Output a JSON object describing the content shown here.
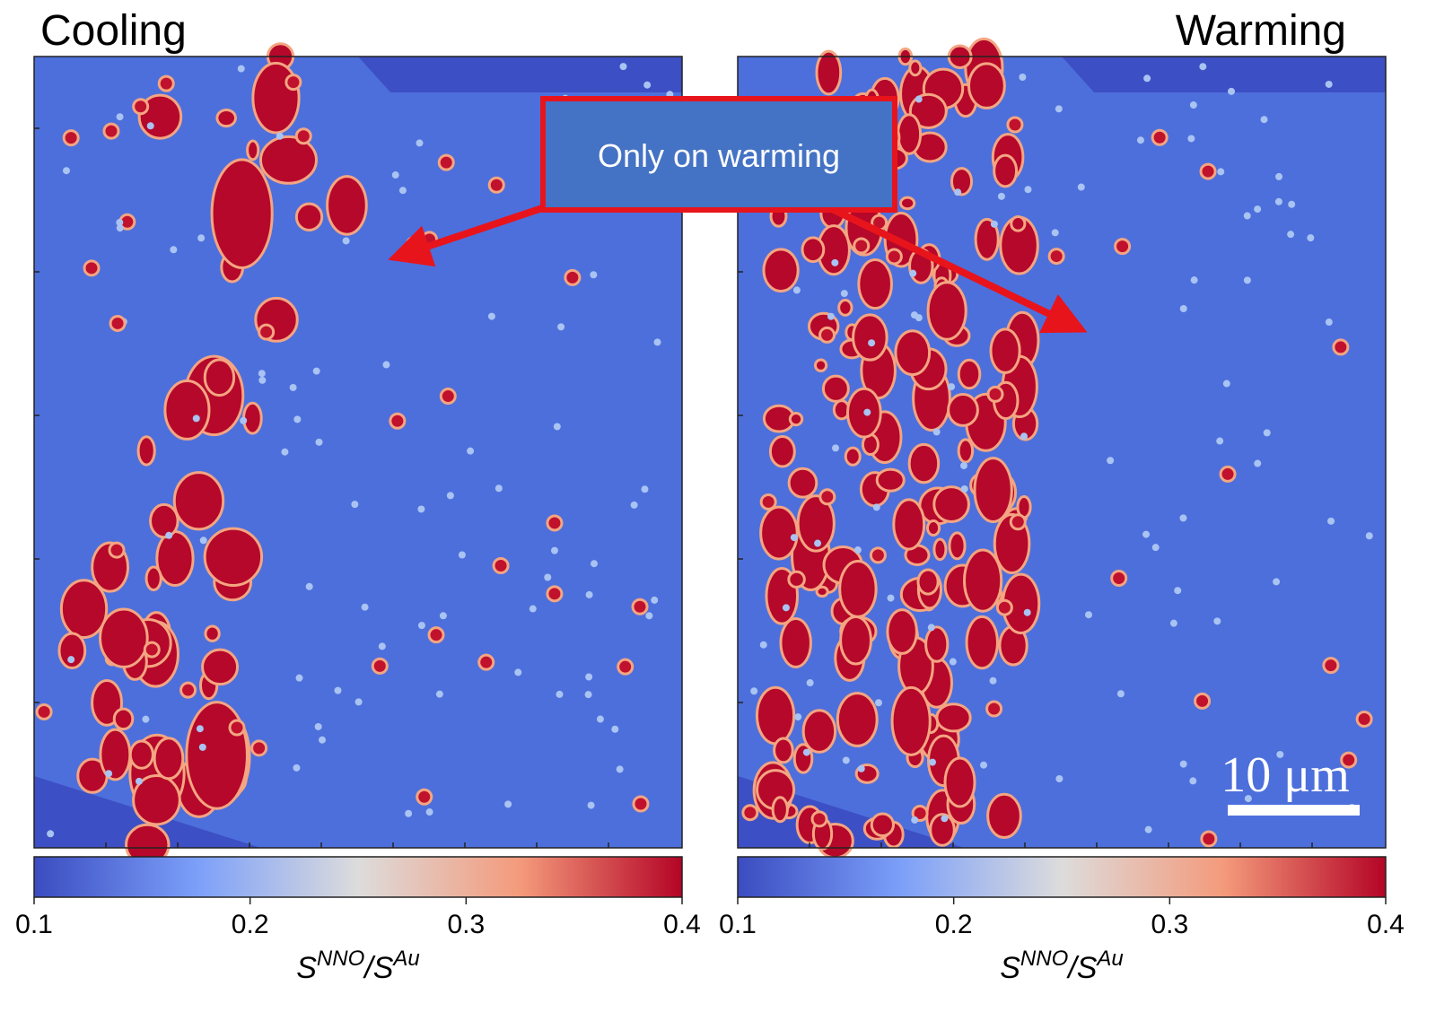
{
  "panels": [
    {
      "title": "Cooling",
      "colorbar": {
        "lim": [
          0.1,
          0.4
        ],
        "ticks": [
          0.1,
          0.2,
          0.3,
          0.4
        ],
        "label": {
          "base1": "S",
          "sup1": "NNO",
          "sep": "/",
          "base2": "S",
          "sup2": "Au"
        }
      }
    },
    {
      "title": "Warming",
      "colorbar": {
        "lim": [
          0.1,
          0.4
        ],
        "ticks": [
          0.1,
          0.2,
          0.3,
          0.4
        ],
        "label": {
          "base1": "S",
          "sup1": "NNO",
          "sep": "/",
          "base2": "S",
          "sup2": "Au"
        }
      }
    }
  ],
  "annotation": "Only on warming",
  "scale_bar": "10 μm"
}
